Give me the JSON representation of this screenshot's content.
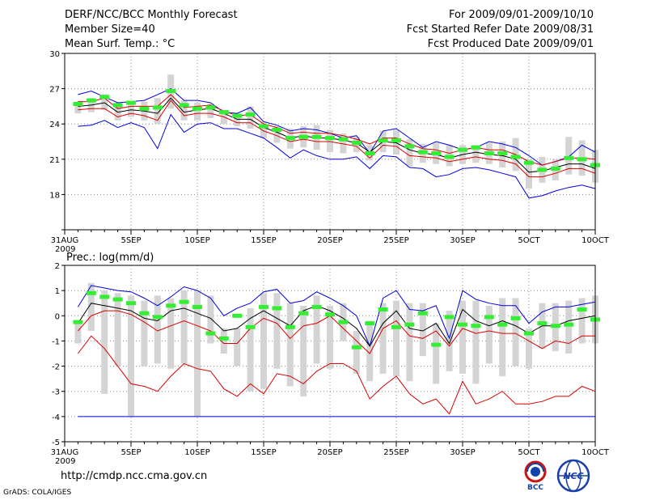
{
  "header": {
    "title": "DERF/NCC/BCC Monthly Forecast",
    "member_size": "Member Size=40",
    "variable": "Mean Surf. Temp.: °C",
    "period": "For 2009/09/01-2009/10/10",
    "started": "Fcst Started Refer Date 2009/08/31",
    "produced": "Fcst Produced Date 2009/09/01"
  },
  "footer": {
    "url": "http://cmdp.ncc.cma.gov.cn",
    "credit": "GrADS: COLA/IGES",
    "logo_bcc_text": "BCC",
    "logo_ncc_text": "NCC"
  },
  "colors": {
    "upper_bound": "#0000dd",
    "lower_bound": "#0000dd",
    "mean": "#000000",
    "inner_band": "#d80000",
    "median": "#33ee33",
    "box": "#d4d4d4"
  },
  "chart_data": [
    {
      "type": "line",
      "title": "Mean Surf. Temp.: °C",
      "ylim": [
        15,
        30
      ],
      "yticks": [
        15,
        18,
        21,
        24,
        27,
        30
      ],
      "ytick_labels": [
        "",
        "18",
        "21",
        "24",
        "27",
        "30"
      ],
      "xlim": [
        0,
        40
      ],
      "xticks": [
        0,
        5,
        10,
        15,
        20,
        25,
        30,
        35,
        40
      ],
      "xtick_labels": [
        "31AUG",
        "5SEP",
        "10SEP",
        "15SEP",
        "20SEP",
        "25SEP",
        "30SEP",
        "5OCT",
        "10OCT"
      ],
      "year_label": "2009",
      "grid": true,
      "x": [
        1,
        2,
        3,
        4,
        5,
        6,
        7,
        8,
        9,
        10,
        11,
        12,
        13,
        14,
        15,
        16,
        17,
        18,
        19,
        20,
        21,
        22,
        23,
        24,
        25,
        26,
        27,
        28,
        29,
        30,
        31,
        32,
        33,
        34,
        35,
        36,
        37,
        38,
        39,
        40
      ],
      "series": [
        {
          "name": "max",
          "values": [
            26.5,
            26.8,
            26.3,
            25.8,
            25.9,
            26.0,
            26.5,
            27.0,
            26.0,
            26.0,
            25.8,
            25.0,
            24.9,
            25.4,
            24.2,
            23.9,
            23.4,
            23.6,
            23.5,
            23.2,
            22.8,
            23.0,
            21.5,
            23.4,
            23.6,
            22.8,
            22.0,
            22.5,
            22.2,
            21.8,
            22.0,
            22.5,
            22.3,
            22.0,
            21.3,
            20.5,
            20.8,
            21.2,
            22.2,
            21.6
          ]
        },
        {
          "name": "upper",
          "values": [
            25.9,
            25.9,
            26.2,
            25.3,
            25.5,
            25.5,
            25.5,
            26.5,
            25.4,
            25.5,
            25.6,
            25.1,
            24.7,
            24.8,
            24.0,
            23.7,
            23.2,
            23.3,
            23.2,
            23.2,
            23.0,
            22.7,
            22.3,
            22.8,
            22.8,
            22.3,
            21.9,
            21.8,
            21.5,
            21.8,
            22.0,
            21.8,
            21.8,
            21.4,
            20.8,
            20.5,
            20.8,
            21.1,
            21.1,
            21.0
          ]
        },
        {
          "name": "mean",
          "values": [
            25.5,
            25.6,
            25.8,
            25.0,
            25.2,
            25.1,
            24.9,
            26.2,
            25.0,
            25.2,
            25.3,
            24.9,
            24.4,
            24.4,
            23.7,
            23.3,
            22.8,
            23.0,
            22.8,
            22.8,
            22.6,
            22.4,
            21.6,
            22.5,
            22.4,
            21.8,
            21.5,
            21.4,
            21.1,
            21.4,
            21.6,
            21.4,
            21.3,
            21.0,
            19.9,
            20.0,
            20.3,
            20.6,
            20.6,
            20.2
          ]
        },
        {
          "name": "lower",
          "values": [
            25.2,
            25.3,
            25.3,
            24.6,
            24.9,
            24.7,
            24.3,
            26.0,
            24.7,
            24.9,
            24.9,
            24.6,
            24.1,
            24.1,
            23.4,
            23.0,
            22.5,
            22.7,
            22.5,
            22.5,
            22.3,
            22.1,
            21.1,
            22.2,
            22.1,
            21.3,
            21.2,
            21.1,
            20.8,
            21.0,
            21.2,
            21.0,
            20.9,
            20.6,
            19.5,
            19.5,
            19.8,
            20.2,
            20.2,
            19.8
          ]
        },
        {
          "name": "min",
          "values": [
            23.8,
            23.9,
            24.3,
            23.7,
            24.1,
            23.7,
            21.9,
            24.8,
            23.3,
            24.0,
            24.1,
            23.6,
            23.6,
            23.2,
            22.8,
            22.0,
            21.1,
            21.8,
            21.3,
            21.0,
            21.0,
            21.2,
            20.2,
            21.3,
            21.2,
            20.3,
            20.2,
            19.5,
            19.7,
            20.2,
            20.3,
            20.1,
            19.8,
            19.5,
            17.7,
            17.9,
            18.3,
            18.6,
            18.8,
            18.5
          ]
        },
        {
          "name": "median",
          "values": [
            25.7,
            26.0,
            26.3,
            25.6,
            25.8,
            25.3,
            25.4,
            26.8,
            25.6,
            25.3,
            25.4,
            25.0,
            24.7,
            24.8,
            23.8,
            23.5,
            22.8,
            22.9,
            22.9,
            22.8,
            22.7,
            22.4,
            21.5,
            22.6,
            22.6,
            22.1,
            21.6,
            21.5,
            21.2,
            21.8,
            22.0,
            21.5,
            21.5,
            21.2,
            20.7,
            20.1,
            20.2,
            21.1,
            21.0,
            20.5
          ]
        },
        {
          "name": "box_top",
          "values": [
            25.8,
            26.2,
            26.5,
            25.8,
            25.9,
            25.9,
            26.2,
            28.2,
            26.0,
            25.8,
            25.7,
            25.2,
            24.9,
            25.5,
            24.2,
            23.8,
            23.6,
            23.8,
            23.9,
            23.5,
            23.2,
            22.9,
            22.2,
            23.4,
            23.5,
            22.7,
            22.3,
            22.4,
            22.2,
            22.2,
            22.2,
            22.4,
            22.5,
            22.8,
            21.0,
            21.2,
            21.0,
            22.9,
            22.6,
            21.8
          ]
        },
        {
          "name": "box_bottom",
          "values": [
            24.9,
            25.0,
            25.2,
            24.3,
            24.6,
            24.3,
            24.0,
            25.3,
            24.3,
            24.3,
            24.5,
            24.0,
            23.8,
            23.6,
            22.8,
            22.4,
            21.9,
            22.0,
            21.8,
            21.6,
            21.5,
            21.6,
            20.9,
            21.6,
            21.4,
            20.4,
            20.7,
            20.6,
            20.4,
            20.6,
            20.7,
            20.6,
            20.3,
            20.0,
            18.5,
            19.0,
            19.2,
            19.7,
            19.6,
            19.0
          ]
        }
      ]
    },
    {
      "type": "line",
      "title": "Prec.: log(mm/d)",
      "ylim": [
        -5,
        2
      ],
      "yticks": [
        -5,
        -4,
        -3,
        -2,
        -1,
        0,
        1,
        2
      ],
      "ytick_labels": [
        "-5",
        "-4",
        "-3",
        "-2",
        "-1",
        "0",
        "1",
        "2"
      ],
      "xlim": [
        0,
        40
      ],
      "xticks": [
        0,
        5,
        10,
        15,
        20,
        25,
        30,
        35,
        40
      ],
      "xtick_labels": [
        "31AUG",
        "5SEP",
        "10SEP",
        "15SEP",
        "20SEP",
        "25SEP",
        "30SEP",
        "5OCT",
        "10OCT"
      ],
      "year_label": "2009",
      "grid": true,
      "x": [
        1,
        2,
        3,
        4,
        5,
        6,
        7,
        8,
        9,
        10,
        11,
        12,
        13,
        14,
        15,
        16,
        17,
        18,
        19,
        20,
        21,
        22,
        23,
        24,
        25,
        26,
        27,
        28,
        29,
        30,
        31,
        32,
        33,
        34,
        35,
        36,
        37,
        38,
        39,
        40
      ],
      "series": [
        {
          "name": "max",
          "values": [
            0.35,
            1.2,
            1.1,
            1.0,
            0.95,
            0.7,
            0.4,
            0.75,
            1.15,
            1.0,
            0.7,
            0.0,
            0.3,
            0.5,
            0.95,
            1.05,
            0.5,
            0.6,
            0.95,
            0.7,
            0.4,
            0.0,
            -1.2,
            0.7,
            1.0,
            0.25,
            0.2,
            0.4,
            -0.9,
            1.0,
            0.65,
            0.5,
            0.4,
            0.4,
            -0.3,
            0.15,
            0.35,
            0.35,
            0.45,
            0.55
          ]
        },
        {
          "name": "mean",
          "values": [
            -0.3,
            0.5,
            0.4,
            0.3,
            0.2,
            -0.1,
            -0.2,
            0.2,
            0.3,
            0.1,
            -0.1,
            -0.6,
            -0.5,
            -0.1,
            0.2,
            -0.1,
            -0.4,
            0.2,
            0.4,
            0.2,
            -0.1,
            -0.5,
            -1.2,
            -0.3,
            0.2,
            -0.5,
            -0.6,
            -0.3,
            -1.1,
            0.25,
            -0.2,
            -0.4,
            -0.2,
            -0.4,
            -0.7,
            -0.4,
            -0.4,
            -0.2,
            -0.1,
            0.0
          ]
        },
        {
          "name": "upper_band",
          "values": [
            -0.6,
            0.0,
            0.2,
            0.2,
            0.05,
            -0.25,
            -0.6,
            -0.4,
            -0.2,
            -0.4,
            -0.6,
            -1.1,
            -1.1,
            -0.5,
            -0.1,
            -0.3,
            -0.9,
            -0.4,
            -0.3,
            0.0,
            -0.5,
            -1.0,
            -1.5,
            -0.5,
            -0.2,
            -0.8,
            -0.9,
            -0.6,
            -1.2,
            -0.5,
            -0.7,
            -0.6,
            -0.7,
            -0.7,
            -1.0,
            -1.3,
            -1.0,
            -1.1,
            -0.8,
            -0.8
          ]
        },
        {
          "name": "lower_band",
          "values": [
            -1.5,
            -0.8,
            -1.3,
            -2.0,
            -2.7,
            -2.8,
            -3.0,
            -2.4,
            -1.9,
            -2.1,
            -2.2,
            -2.9,
            -3.2,
            -2.7,
            -3.1,
            -2.3,
            -2.4,
            -2.7,
            -2.2,
            -1.9,
            -1.9,
            -2.2,
            -3.3,
            -2.8,
            -2.4,
            -3.1,
            -3.5,
            -3.3,
            -3.9,
            -2.6,
            -3.5,
            -3.3,
            -3.0,
            -3.5,
            -3.5,
            -3.4,
            -3.2,
            -3.2,
            -2.8,
            -3.0
          ]
        },
        {
          "name": "min",
          "values": [
            -4.0,
            -4.0,
            -4.0,
            -4.0,
            -4.0,
            -4.0,
            -4.0,
            -4.0,
            -4.0,
            -4.0,
            -4.0,
            -4.0,
            -4.0,
            -4.0,
            -4.0,
            -4.0,
            -4.0,
            -4.0,
            -4.0,
            -4.0,
            -4.0,
            -4.0,
            -4.0,
            -4.0,
            -4.0,
            -4.0,
            -4.0,
            -4.0,
            -4.0,
            -4.0,
            -4.0,
            -4.0,
            -4.0,
            -4.0,
            -4.0,
            -4.0,
            -4.0,
            -4.0,
            -4.0,
            -4.0
          ]
        },
        {
          "name": "median",
          "values": [
            -0.25,
            0.9,
            0.75,
            0.65,
            0.5,
            0.1,
            -0.05,
            0.4,
            0.55,
            0.35,
            -0.7,
            -0.9,
            0.0,
            -0.45,
            0.35,
            0.3,
            -0.45,
            0.1,
            0.35,
            0.05,
            -0.25,
            -1.25,
            -0.3,
            0.25,
            -0.45,
            -0.35,
            0.1,
            -1.15,
            -0.05,
            -0.35,
            -0.4,
            -0.05,
            -0.35,
            -0.1,
            -0.7,
            -0.3,
            -0.4,
            -0.35,
            0.25,
            -0.15
          ]
        },
        {
          "name": "box_top",
          "values": [
            -0.2,
            1.3,
            1.0,
            0.9,
            0.8,
            0.6,
            0.8,
            0.7,
            1.0,
            1.0,
            0.8,
            -0.5,
            -0.5,
            0.3,
            0.9,
            0.9,
            0.5,
            0.4,
            0.8,
            0.4,
            0.5,
            -0.6,
            -0.2,
            0.5,
            0.6,
            0.5,
            0.5,
            -0.3,
            0.2,
            0.6,
            0.6,
            0.4,
            0.7,
            0.7,
            -0.5,
            0.5,
            0.5,
            0.6,
            0.7,
            0.8
          ]
        },
        {
          "name": "box_bottom",
          "values": [
            -1.1,
            -0.6,
            -3.1,
            -2.0,
            -4.0,
            -2.0,
            -1.9,
            -2.1,
            -1.9,
            -4.0,
            -1.1,
            -1.5,
            -2.0,
            -3.0,
            -2.9,
            -2.1,
            -2.8,
            -3.2,
            -1.9,
            -2.1,
            -1.0,
            -2.3,
            -2.6,
            -2.3,
            -2.4,
            -2.6,
            -1.6,
            -2.7,
            -2.2,
            -2.3,
            -2.7,
            -1.9,
            -2.4,
            -2.0,
            -2.1,
            -1.3,
            -1.4,
            -1.5,
            -1.1,
            -1.1
          ]
        }
      ]
    }
  ]
}
